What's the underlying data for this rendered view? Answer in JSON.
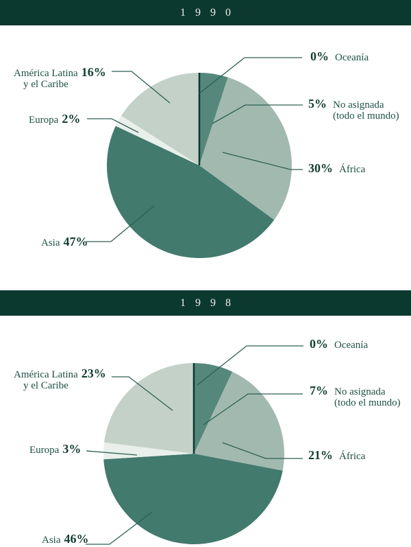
{
  "page": {
    "background": "#ffffff"
  },
  "colors": {
    "band_bg": "#0c392f",
    "band_text": "#eef0ea",
    "label_text": "#1d5044",
    "pct_text": "#123d33",
    "leader": "#2d5f53",
    "slice_colors": {
      "Oceanía": "#0c392f",
      "No asignada (todo el mundo)": "#56877b",
      "África": "#a2b9af",
      "Asia": "#427a6d",
      "Europa": "#e9efeb",
      "América Latina y el Caribe": "#c3d1c9"
    }
  },
  "chart_data": [
    {
      "type": "pie",
      "title": "1990",
      "title_display": "1 9 9 0",
      "start_angle": "12 o'clock, clockwise",
      "slices": [
        {
          "name": "Oceanía",
          "value": 0,
          "pct_label": "0%",
          "name_lines": [
            "Oceanía"
          ]
        },
        {
          "name": "No asignada (todo el mundo)",
          "value": 5,
          "pct_label": "5%",
          "name_lines": [
            "No asignada",
            "(todo el mundo)"
          ]
        },
        {
          "name": "África",
          "value": 30,
          "pct_label": "30%",
          "name_lines": [
            "África"
          ]
        },
        {
          "name": "Asia",
          "value": 47,
          "pct_label": "47%",
          "name_lines": [
            "Asia"
          ]
        },
        {
          "name": "Europa",
          "value": 2,
          "pct_label": "2%",
          "name_lines": [
            "Europa"
          ]
        },
        {
          "name": "América Latina y el Caribe",
          "value": 16,
          "pct_label": "16%",
          "name_lines": [
            "América Latina",
            "y el Caribe"
          ]
        }
      ]
    },
    {
      "type": "pie",
      "title": "1998",
      "title_display": "1 9 9 8",
      "start_angle": "12 o'clock, clockwise",
      "slices": [
        {
          "name": "Oceanía",
          "value": 0,
          "pct_label": "0%",
          "name_lines": [
            "Oceanía"
          ]
        },
        {
          "name": "No asignada (todo el mundo)",
          "value": 7,
          "pct_label": "7%",
          "name_lines": [
            "No asignada",
            "(todo el mundo)"
          ]
        },
        {
          "name": "África",
          "value": 21,
          "pct_label": "21%",
          "name_lines": [
            "África"
          ]
        },
        {
          "name": "Asia",
          "value": 46,
          "pct_label": "46%",
          "name_lines": [
            "Asia"
          ]
        },
        {
          "name": "Europa",
          "value": 3,
          "pct_label": "3%",
          "name_lines": [
            "Europa"
          ]
        },
        {
          "name": "América Latina y el Caribe",
          "value": 23,
          "pct_label": "23%",
          "name_lines": [
            "América Latina",
            "y el Caribe"
          ]
        }
      ]
    }
  ]
}
